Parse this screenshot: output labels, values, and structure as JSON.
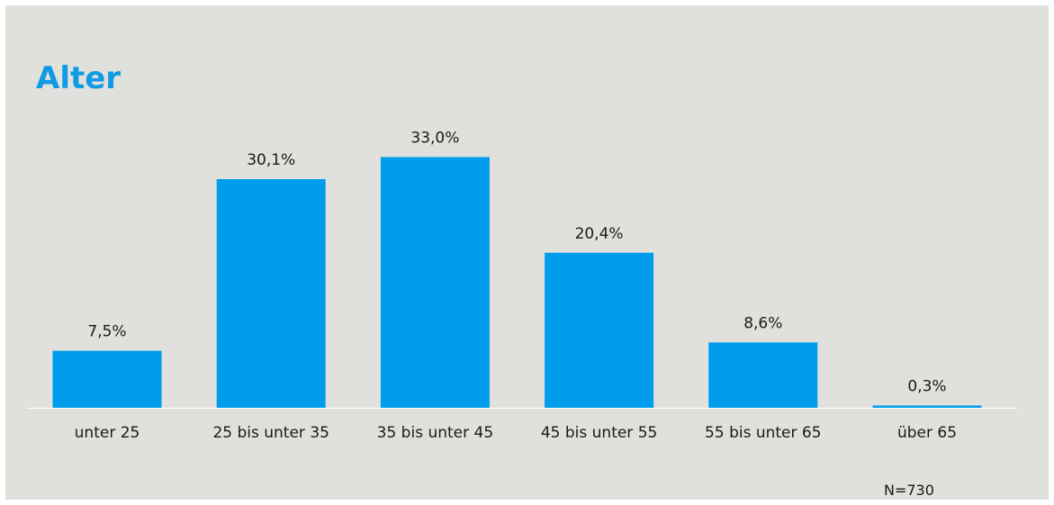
{
  "chart_data": {
    "type": "bar",
    "title": "Alter",
    "categories": [
      "unter 25",
      "25 bis unter 35",
      "35 bis unter 45",
      "45 bis unter 55",
      "55 bis unter 65",
      "über 65"
    ],
    "values": [
      7.5,
      30.1,
      33.0,
      20.4,
      8.6,
      0.3
    ],
    "value_labels": [
      "7,5%",
      "30,1%",
      "33,0%",
      "20,4%",
      "8,6%",
      "0,3%"
    ],
    "ylim": [
      0,
      40
    ],
    "grid": false,
    "note": "N=730",
    "bar_color": "#009ded",
    "title_color": "#0f9be3",
    "background": "#e0e0dc"
  }
}
